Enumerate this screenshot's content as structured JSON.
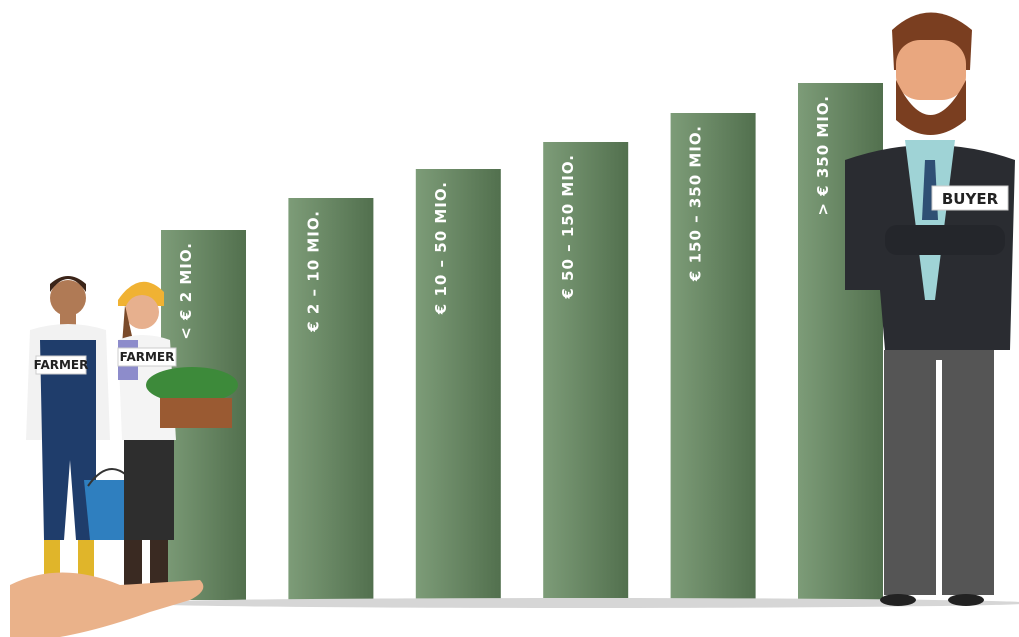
{
  "bars": [
    {
      "label": "< € 2 MIO."
    },
    {
      "label": "€ 2 – 10 MIO."
    },
    {
      "label": "€ 10 – 50 MIO."
    },
    {
      "label": "€ 50 – 150 MIO."
    },
    {
      "label": "€ 150 – 350 MIO."
    },
    {
      "label": "> € 350 MIO."
    }
  ],
  "figures": [
    {
      "label": "FARMER"
    },
    {
      "label": "FARMER"
    },
    {
      "label": "BUYER"
    }
  ]
}
